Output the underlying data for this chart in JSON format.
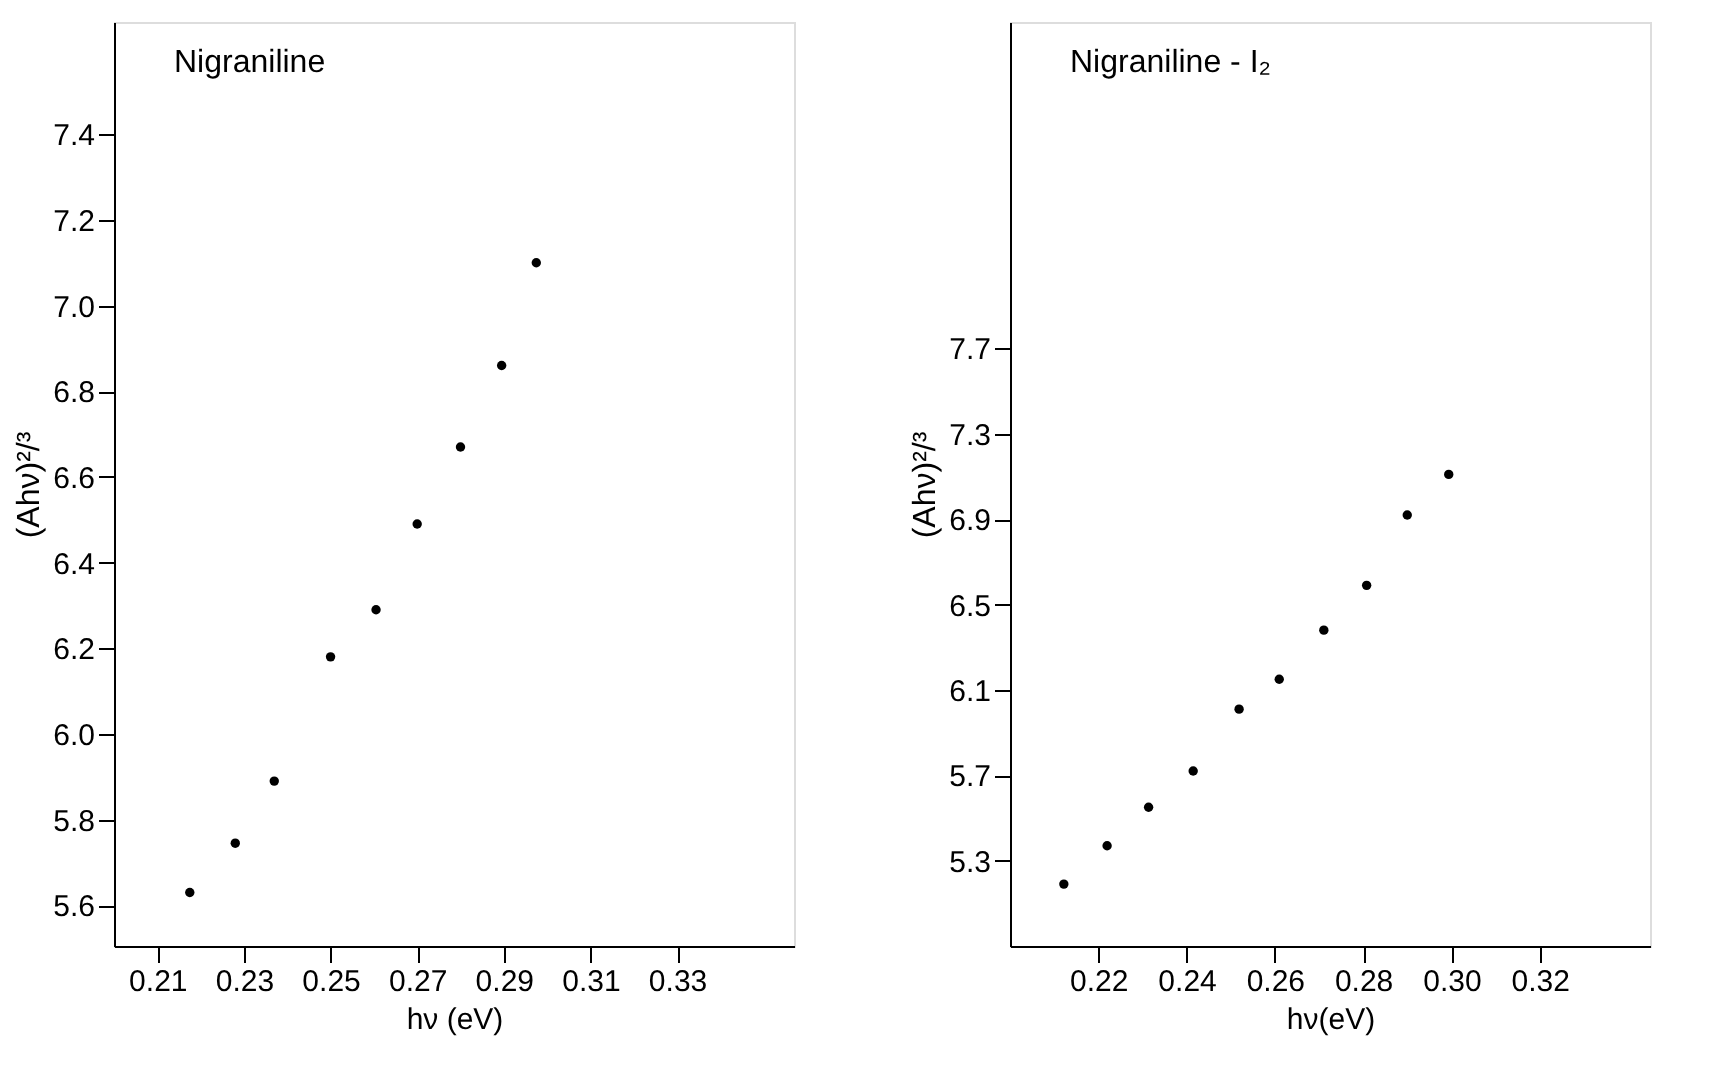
{
  "chart_data": [
    {
      "type": "scatter",
      "title": "Nigraniline",
      "xlabel": "hν (eV)",
      "ylabel": "(Ahν)²/³",
      "marker": "circle",
      "grid": false,
      "x": [
        0.2175,
        0.228,
        0.237,
        0.25,
        0.2605,
        0.27,
        0.28,
        0.2895,
        0.2975
      ],
      "series": [
        {
          "color": "#000000",
          "values": [
            5.63,
            5.745,
            5.89,
            6.18,
            6.29,
            6.49,
            6.67,
            6.86,
            7.1
          ]
        }
      ],
      "xlim": [
        0.2,
        0.357
      ],
      "xticks": [
        0.21,
        0.23,
        0.25,
        0.27,
        0.29,
        0.31,
        0.33
      ],
      "ylim": [
        5.505,
        7.662
      ],
      "yticks": [
        5.6,
        5.8,
        {
          "value": 6,
          "label": "6.0"
        },
        6.2,
        6.4,
        6.6,
        6.8,
        {
          "value": 7,
          "label": "7.0"
        },
        7.2,
        7.4
      ]
    },
    {
      "type": "scatter",
      "title": "Nigraniline - I₂",
      "xlabel": "hν(eV)",
      "ylabel": "(Ahν)²/³",
      "marker": "circle",
      "grid": false,
      "x": [
        0.2122,
        0.222,
        0.2314,
        0.2415,
        0.2519,
        0.261,
        0.2711,
        0.2808,
        0.29,
        0.2994
      ],
      "series": [
        {
          "color": "#000000",
          "values": [
            5.19,
            5.37,
            5.55,
            5.72,
            6.01,
            6.15,
            6.38,
            6.59,
            6.92,
            7.11
          ]
        }
      ],
      "xlim": [
        0.2,
        0.345
      ],
      "xticks": [
        0.22,
        0.24,
        0.26,
        0.28,
        {
          "value": 0.3,
          "label": "0.30"
        },
        0.32
      ],
      "ylim": [
        4.9,
        9.23
      ],
      "yticks": [
        5.3,
        5.7,
        6.1,
        6.5,
        6.9,
        7.3,
        7.7
      ]
    }
  ]
}
